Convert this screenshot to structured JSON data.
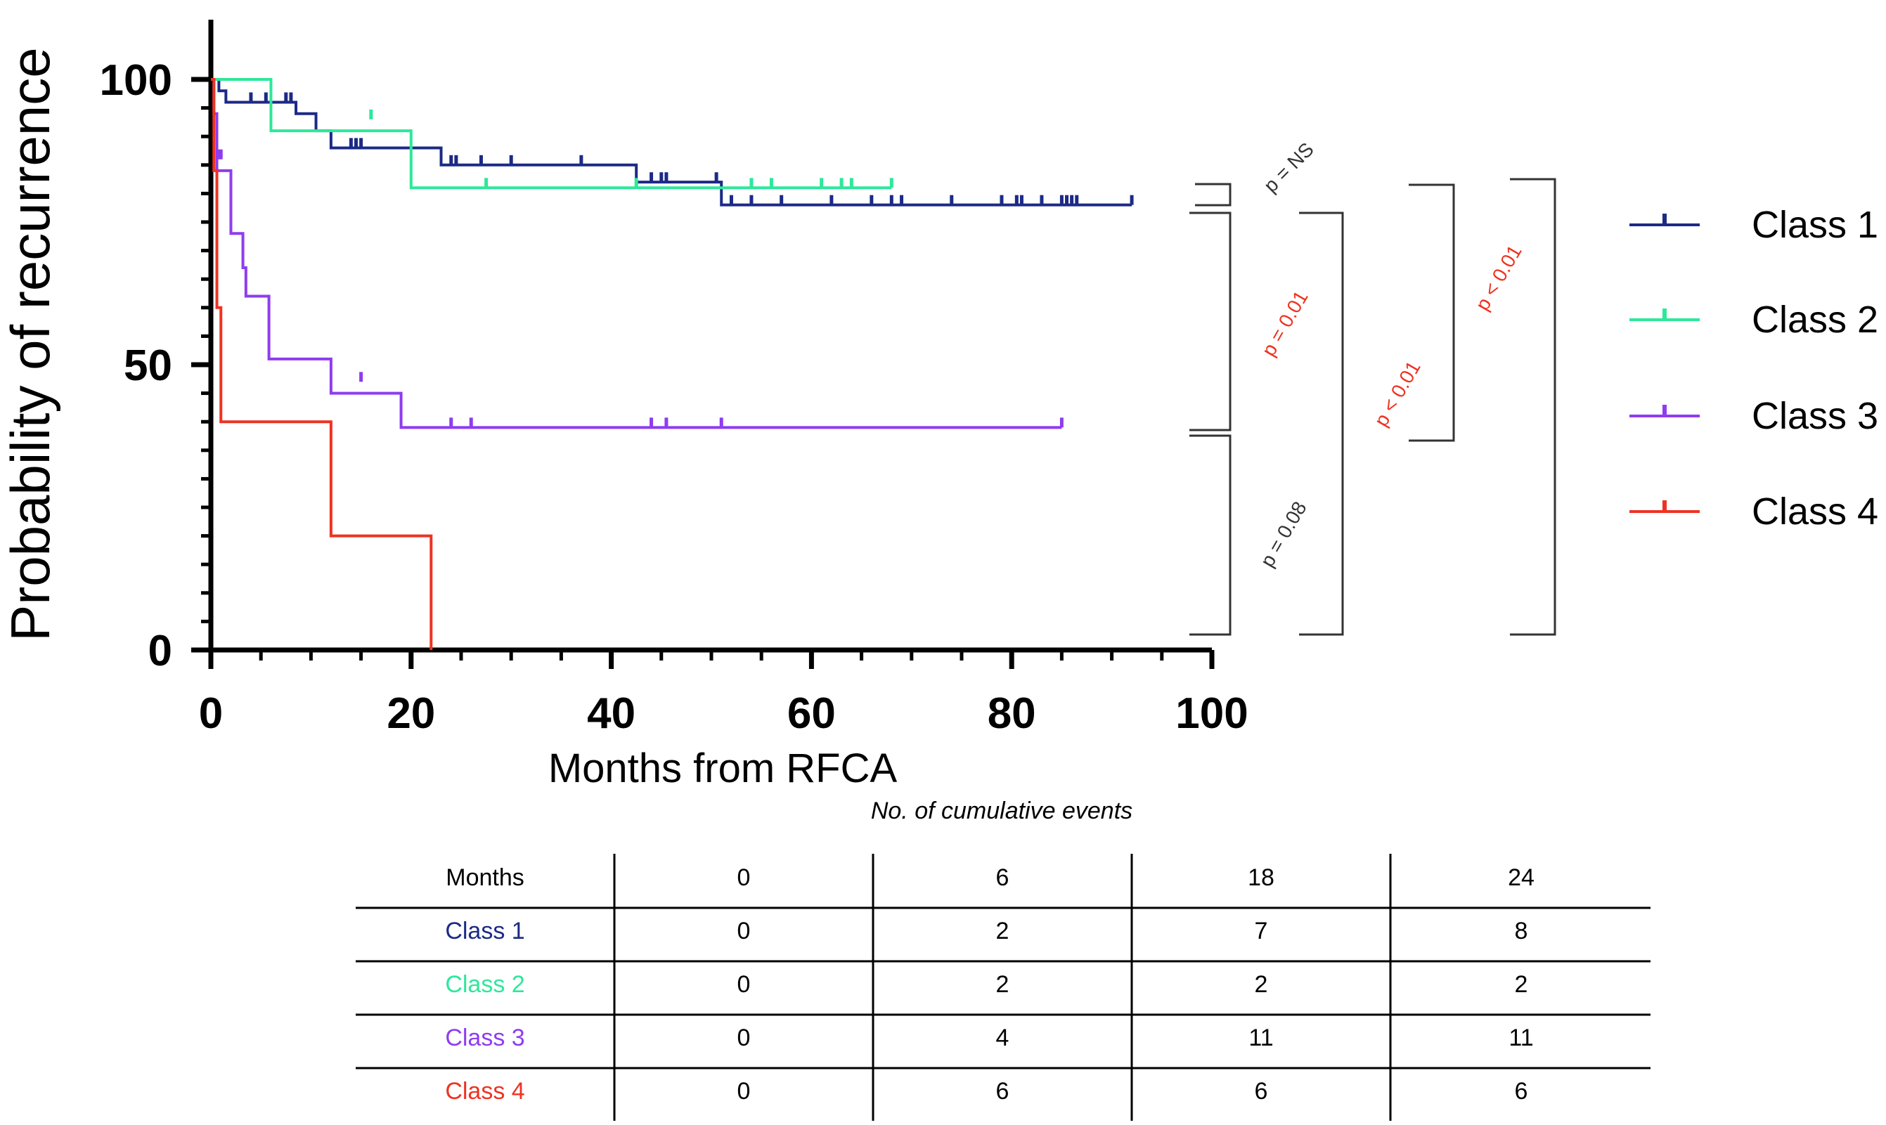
{
  "chart_data": {
    "type": "line",
    "subtype": "kaplan-meier",
    "title": "",
    "xlabel": "Months from RFCA",
    "ylabel": "Probability of recurrence",
    "xlim": [
      0,
      100
    ],
    "ylim": [
      0,
      100
    ],
    "x_ticks": [
      "0",
      "20",
      "40",
      "60",
      "80",
      "100"
    ],
    "y_ticks": [
      "0",
      "50",
      "100"
    ],
    "series": [
      {
        "name": "Class 1",
        "color": "#1c2a86",
        "steps": [
          [
            0,
            100
          ],
          [
            0.8,
            98
          ],
          [
            1.5,
            96
          ],
          [
            7,
            96
          ],
          [
            8.5,
            94
          ],
          [
            10.5,
            91
          ],
          [
            12,
            88
          ],
          [
            20,
            88
          ],
          [
            23,
            85
          ],
          [
            42,
            85
          ],
          [
            42.5,
            82
          ],
          [
            50.5,
            82
          ],
          [
            51,
            78
          ],
          [
            92,
            78
          ]
        ],
        "censored": [
          [
            4,
            96
          ],
          [
            5.5,
            96
          ],
          [
            7.5,
            96
          ],
          [
            8,
            96
          ],
          [
            14,
            88
          ],
          [
            14.5,
            88
          ],
          [
            15,
            88
          ],
          [
            24,
            85
          ],
          [
            24.5,
            85
          ],
          [
            27,
            85
          ],
          [
            30,
            85
          ],
          [
            37,
            85
          ],
          [
            44,
            82
          ],
          [
            45,
            82
          ],
          [
            45.5,
            82
          ],
          [
            50.5,
            82
          ],
          [
            52,
            78
          ],
          [
            54,
            78
          ],
          [
            57,
            78
          ],
          [
            62,
            78
          ],
          [
            66,
            78
          ],
          [
            68,
            78
          ],
          [
            69,
            78
          ],
          [
            74,
            78
          ],
          [
            79,
            78
          ],
          [
            80.5,
            78
          ],
          [
            81,
            78
          ],
          [
            83,
            78
          ],
          [
            85,
            78
          ],
          [
            85.5,
            78
          ],
          [
            86,
            78
          ],
          [
            86.5,
            78
          ],
          [
            92,
            78
          ]
        ]
      },
      {
        "name": "Class 2",
        "color": "#2ee89a",
        "steps": [
          [
            0,
            100
          ],
          [
            6,
            100
          ],
          [
            6,
            91
          ],
          [
            20,
            91
          ],
          [
            20,
            81
          ],
          [
            68,
            81
          ]
        ],
        "censored": [
          [
            16,
            93
          ],
          [
            27.5,
            81
          ],
          [
            42.5,
            81
          ],
          [
            54,
            81
          ],
          [
            56,
            81
          ],
          [
            61,
            81
          ],
          [
            63,
            81
          ],
          [
            64,
            81
          ],
          [
            68,
            81
          ]
        ]
      },
      {
        "name": "Class 3",
        "color": "#8f3cf0",
        "steps": [
          [
            0,
            100
          ],
          [
            0.3,
            94
          ],
          [
            0.6,
            84
          ],
          [
            2,
            84
          ],
          [
            2,
            73
          ],
          [
            3,
            73
          ],
          [
            3.2,
            67
          ],
          [
            3.5,
            62
          ],
          [
            5.8,
            62
          ],
          [
            5.8,
            51
          ],
          [
            12,
            51
          ],
          [
            12,
            45
          ],
          [
            19,
            45
          ],
          [
            19,
            39
          ],
          [
            85,
            39
          ]
        ],
        "censored": [
          [
            0.8,
            86
          ],
          [
            1,
            86
          ],
          [
            15,
            47
          ],
          [
            24,
            39
          ],
          [
            26,
            39
          ],
          [
            44,
            39
          ],
          [
            45.5,
            39
          ],
          [
            51,
            39
          ],
          [
            85,
            39
          ]
        ]
      },
      {
        "name": "Class 4",
        "color": "#ee3322",
        "steps": [
          [
            0,
            100
          ],
          [
            0.3,
            84
          ],
          [
            0.6,
            60
          ],
          [
            1,
            60
          ],
          [
            1,
            40
          ],
          [
            12,
            40
          ],
          [
            12,
            20
          ],
          [
            22,
            20
          ],
          [
            22,
            0
          ]
        ],
        "censored": []
      }
    ],
    "legend": {
      "position": "right"
    },
    "comparisons": [
      {
        "label": "p = NS",
        "color": "#333333",
        "significant": false
      },
      {
        "label": "p = 0.01",
        "color": "#ee3322",
        "significant": true
      },
      {
        "label": "p = 0.08",
        "color": "#333333",
        "significant": false
      },
      {
        "label": "p < 0.01",
        "color": "#ee3322",
        "significant": true
      },
      {
        "label": "p < 0.01",
        "color": "#ee3322",
        "significant": true
      }
    ]
  },
  "events_table": {
    "caption": "No. of cumulative events",
    "header": [
      "Months",
      "0",
      "6",
      "18",
      "24"
    ],
    "rows": [
      {
        "label": "Class 1",
        "color": "#1c2a86",
        "values": [
          "0",
          "2",
          "7",
          "8"
        ]
      },
      {
        "label": "Class 2",
        "color": "#2ee89a",
        "values": [
          "0",
          "2",
          "2",
          "2"
        ]
      },
      {
        "label": "Class 3",
        "color": "#8f3cf0",
        "values": [
          "0",
          "4",
          "11",
          "11"
        ]
      },
      {
        "label": "Class 4",
        "color": "#ee3322",
        "values": [
          "0",
          "6",
          "6",
          "6"
        ]
      }
    ]
  }
}
